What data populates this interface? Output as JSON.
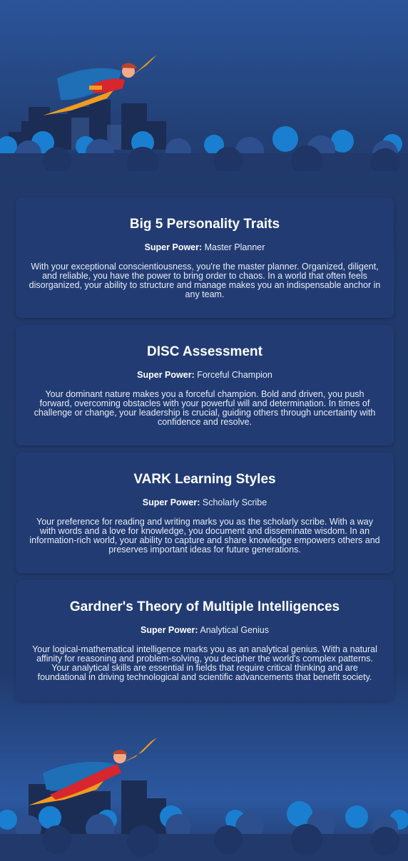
{
  "cards": [
    {
      "title": "Big 5 Personality Traits",
      "power_label": "Super Power:",
      "power_value": "Master Planner",
      "description": "With your exceptional conscientiousness, you're the master planner. Organized, diligent, and reliable, you have the power to bring order to chaos. In a world that often feels disorganized, your ability to structure and manage makes you an indispensable anchor in any team."
    },
    {
      "title": "DISC Assessment",
      "power_label": "Super Power:",
      "power_value": "Forceful Champion",
      "description": "Your dominant nature makes you a forceful champion. Bold and driven, you push forward, overcoming obstacles with your powerful will and determination. In times of challenge or change, your leadership is crucial, guiding others through uncertainty with confidence and resolve."
    },
    {
      "title": "VARK Learning Styles",
      "power_label": "Super Power:",
      "power_value": "Scholarly Scribe",
      "description": "Your preference for reading and writing marks you as the scholarly scribe. With a way with words and a love for knowledge, you document and disseminate wisdom. In an information-rich world, your ability to capture and share knowledge empowers others and preserves important ideas for future generations."
    },
    {
      "title": "Gardner's Theory of Multiple Intelligences",
      "power_label": "Super Power:",
      "power_value": "Analytical Genius",
      "description": "Your logical-mathematical intelligence marks you as an analytical genius. With a natural affinity for reasoning and problem-solving, you decipher the world's complex patterns. Your analytical skills are essential in fields that require critical thinking and are foundational in driving technological and scientific advancements that benefit society."
    }
  ],
  "colors": {
    "card_bg": "#223c73",
    "cloud_light": "#1a7fd0",
    "cloud_dark": "#1e3565",
    "cape": "#1e6fb5",
    "suit": "#d8262e",
    "accent": "#f29b1d"
  },
  "illustrations": [
    "flying-superhero-top",
    "flying-superhero-bottom",
    "city-skyline",
    "clouds"
  ]
}
